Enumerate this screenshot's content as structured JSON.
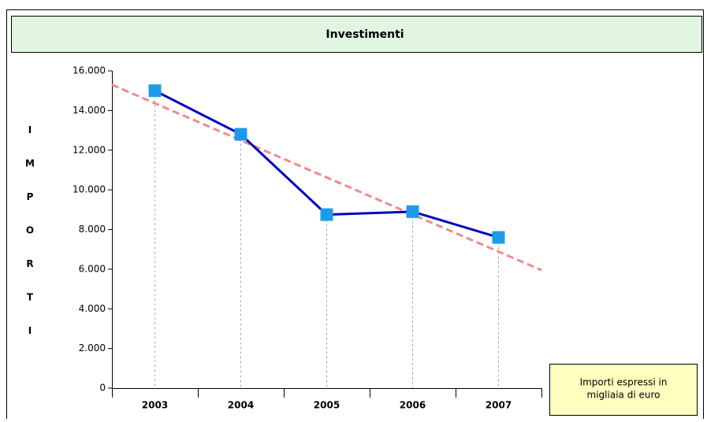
{
  "chart_data": {
    "type": "line",
    "title": "Investimenti",
    "ylabel": "IMPORTI",
    "categories": [
      "2003",
      "2004",
      "2005",
      "2006",
      "2007"
    ],
    "series": [
      {
        "color": "#0000c0",
        "marker_color": "#1e9be8",
        "values": [
          15000,
          12800,
          8750,
          8900,
          7600
        ]
      }
    ],
    "trendline": {
      "color": "#f08a8a",
      "values": [
        15300,
        5950
      ]
    },
    "ylim": [
      0,
      16000
    ],
    "yticks": [
      0,
      {
        "value": 2000,
        "label": "2.000"
      },
      {
        "value": 4000,
        "label": "4.000"
      },
      {
        "value": 6000,
        "label": "6.000"
      },
      {
        "value": 8000,
        "label": "8.000"
      },
      {
        "value": 10000,
        "label": "10.000"
      },
      {
        "value": 12000,
        "label": "12.000"
      },
      {
        "value": 14000,
        "label": "14.000"
      },
      {
        "value": 16000,
        "label": "16.000"
      }
    ],
    "note": [
      "Importi espressi in",
      "migliaia di euro"
    ]
  }
}
